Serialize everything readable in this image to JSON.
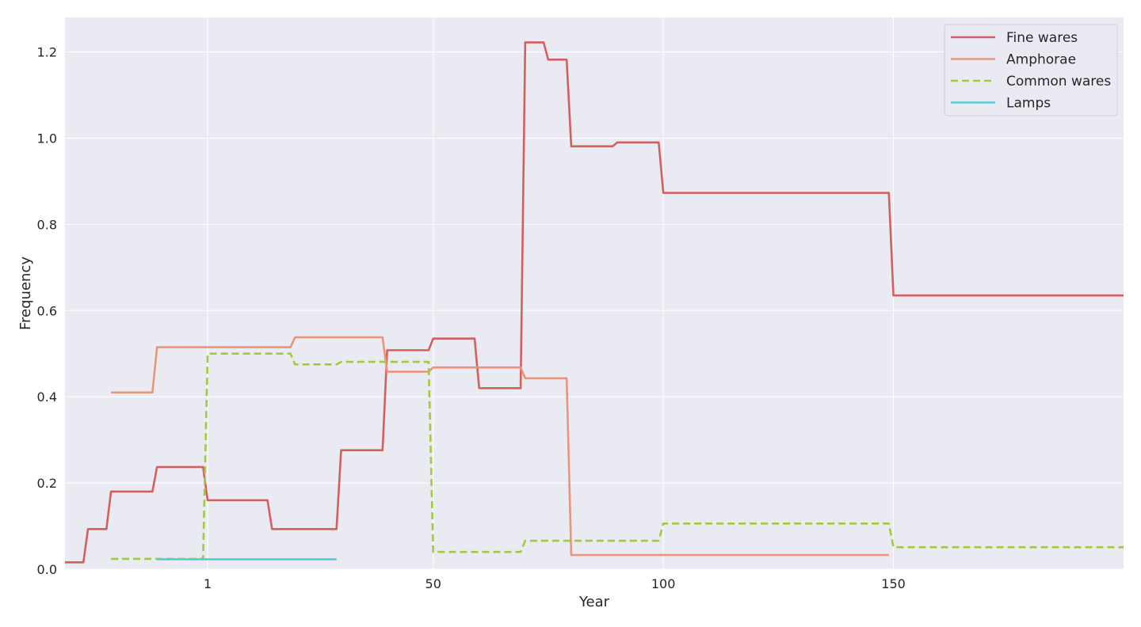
{
  "chart_data": {
    "type": "line",
    "title": "",
    "xlabel": "Year",
    "ylabel": "Frequency",
    "xlim": [
      -30,
      200
    ],
    "ylim": [
      0,
      1.28
    ],
    "xticks": [
      1,
      50,
      100,
      150
    ],
    "yticks": [
      0.0,
      0.2,
      0.4,
      0.6,
      0.8,
      1.0,
      1.2
    ],
    "ytick_labels": [
      "0.0",
      "0.2",
      "0.4",
      "0.6",
      "0.8",
      "1.0",
      "1.2"
    ],
    "grid": true,
    "legend_position": "top-right",
    "series": [
      {
        "name": "Fine wares",
        "color": "#d1605e",
        "dash": "solid",
        "points": [
          [
            -30,
            0.016
          ],
          [
            -26,
            0.016
          ],
          [
            -25,
            0.093
          ],
          [
            -21,
            0.093
          ],
          [
            -20,
            0.18
          ],
          [
            -11,
            0.18
          ],
          [
            -10,
            0.237
          ],
          [
            0,
            0.237
          ],
          [
            1,
            0.16
          ],
          [
            14,
            0.16
          ],
          [
            15,
            0.093
          ],
          [
            29,
            0.093
          ],
          [
            30,
            0.276
          ],
          [
            39,
            0.276
          ],
          [
            40,
            0.508
          ],
          [
            49,
            0.508
          ],
          [
            50,
            0.535
          ],
          [
            59,
            0.535
          ],
          [
            60,
            0.42
          ],
          [
            69,
            0.42
          ],
          [
            70,
            1.222
          ],
          [
            74,
            1.222
          ],
          [
            75,
            1.182
          ],
          [
            79,
            1.182
          ],
          [
            80,
            0.981
          ],
          [
            89,
            0.981
          ],
          [
            90,
            0.99
          ],
          [
            99,
            0.99
          ],
          [
            100,
            0.873
          ],
          [
            149,
            0.873
          ],
          [
            150,
            0.635
          ],
          [
            200,
            0.635
          ]
        ]
      },
      {
        "name": "Amphorae",
        "color": "#e8957a",
        "dash": "solid",
        "points": [
          [
            -20,
            0.41
          ],
          [
            -11,
            0.41
          ],
          [
            -10,
            0.515
          ],
          [
            19,
            0.515
          ],
          [
            20,
            0.538
          ],
          [
            39,
            0.538
          ],
          [
            40,
            0.458
          ],
          [
            49,
            0.458
          ],
          [
            50,
            0.468
          ],
          [
            69,
            0.468
          ],
          [
            70,
            0.443
          ],
          [
            79,
            0.443
          ],
          [
            80,
            0.033
          ],
          [
            149,
            0.033
          ]
        ]
      },
      {
        "name": "Common wares",
        "color": "#a1ca3f",
        "dash": "dashed",
        "points": [
          [
            -20,
            0.024
          ],
          [
            0,
            0.024
          ],
          [
            1,
            0.5
          ],
          [
            19,
            0.5
          ],
          [
            20,
            0.475
          ],
          [
            29,
            0.475
          ],
          [
            30,
            0.481
          ],
          [
            49,
            0.481
          ],
          [
            50,
            0.04
          ],
          [
            69,
            0.04
          ],
          [
            70,
            0.066
          ],
          [
            99,
            0.066
          ],
          [
            100,
            0.106
          ],
          [
            149,
            0.106
          ],
          [
            150,
            0.051
          ],
          [
            200,
            0.051
          ]
        ]
      },
      {
        "name": "Lamps",
        "color": "#4fcfcf",
        "dash": "solid",
        "points": [
          [
            -10,
            0.023
          ],
          [
            29,
            0.023
          ]
        ]
      }
    ]
  }
}
